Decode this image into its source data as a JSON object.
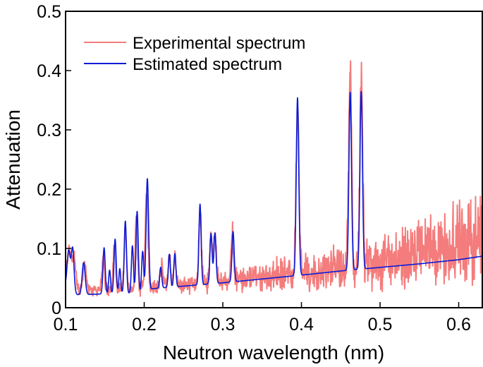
{
  "chart_data": {
    "type": "line",
    "title": "",
    "xlabel": "Neutron wavelength (nm)",
    "ylabel": "Attenuation",
    "xlim": [
      0.1,
      0.63
    ],
    "ylim": [
      0,
      0.5
    ],
    "x_ticks": [
      0.1,
      0.2,
      0.3,
      0.4,
      0.5,
      0.6
    ],
    "x_tick_labels": [
      "0.1",
      "0.2",
      "0.3",
      "0.4",
      "0.5",
      "0.6"
    ],
    "y_ticks": [
      0,
      0.1,
      0.2,
      0.3,
      0.4,
      0.5
    ],
    "y_tick_labels": [
      "0",
      "0.1",
      "0.2",
      "0.3",
      "0.4",
      "0.5"
    ],
    "grid": false,
    "legend_position": "top-left",
    "series": [
      {
        "name": "Experimental spectrum",
        "color": "#f47c7c",
        "style": "noisy",
        "noise_base": 0.012,
        "noise_growth": 0.075,
        "baseline": [
          [
            0.1,
            0.04
          ],
          [
            0.115,
            0.028
          ],
          [
            0.2,
            0.032
          ],
          [
            0.3,
            0.045
          ],
          [
            0.4,
            0.06
          ],
          [
            0.45,
            0.066
          ],
          [
            0.5,
            0.074
          ],
          [
            0.55,
            0.092
          ],
          [
            0.6,
            0.11
          ],
          [
            0.63,
            0.12
          ]
        ],
        "peaks": [
          {
            "x": 0.105,
            "h": 0.06,
            "w": 0.003
          },
          {
            "x": 0.111,
            "h": 0.05,
            "w": 0.002
          },
          {
            "x": 0.124,
            "h": 0.045,
            "w": 0.002
          },
          {
            "x": 0.148,
            "h": 0.06,
            "w": 0.0015
          },
          {
            "x": 0.162,
            "h": 0.075,
            "w": 0.0015
          },
          {
            "x": 0.176,
            "h": 0.1,
            "w": 0.0015
          },
          {
            "x": 0.19,
            "h": 0.12,
            "w": 0.0015
          },
          {
            "x": 0.203,
            "h": 0.16,
            "w": 0.0018
          },
          {
            "x": 0.222,
            "h": 0.04,
            "w": 0.0015
          },
          {
            "x": 0.232,
            "h": 0.05,
            "w": 0.0015
          },
          {
            "x": 0.239,
            "h": 0.05,
            "w": 0.0015
          },
          {
            "x": 0.271,
            "h": 0.12,
            "w": 0.0016
          },
          {
            "x": 0.285,
            "h": 0.08,
            "w": 0.0016
          },
          {
            "x": 0.29,
            "h": 0.08,
            "w": 0.0016
          },
          {
            "x": 0.312,
            "h": 0.08,
            "w": 0.0016
          },
          {
            "x": 0.395,
            "h": 0.28,
            "w": 0.0018
          },
          {
            "x": 0.462,
            "h": 0.33,
            "w": 0.0018
          },
          {
            "x": 0.476,
            "h": 0.32,
            "w": 0.0018
          }
        ]
      },
      {
        "name": "Estimated spectrum",
        "color": "#0a1ad6",
        "style": "smooth",
        "baseline": [
          [
            0.1,
            0.035
          ],
          [
            0.115,
            0.022
          ],
          [
            0.2,
            0.025
          ],
          [
            0.21,
            0.032
          ],
          [
            0.3,
            0.042
          ],
          [
            0.4,
            0.055
          ],
          [
            0.45,
            0.062
          ],
          [
            0.5,
            0.068
          ],
          [
            0.55,
            0.074
          ],
          [
            0.6,
            0.081
          ],
          [
            0.63,
            0.087
          ]
        ],
        "peaks": [
          {
            "x": 0.104,
            "h": 0.065,
            "w": 0.002
          },
          {
            "x": 0.109,
            "h": 0.072,
            "w": 0.0017
          },
          {
            "x": 0.123,
            "h": 0.054,
            "w": 0.0019
          },
          {
            "x": 0.149,
            "h": 0.078,
            "w": 0.0014
          },
          {
            "x": 0.156,
            "h": 0.04,
            "w": 0.0012
          },
          {
            "x": 0.163,
            "h": 0.092,
            "w": 0.0014
          },
          {
            "x": 0.169,
            "h": 0.042,
            "w": 0.0012
          },
          {
            "x": 0.176,
            "h": 0.122,
            "w": 0.0014
          },
          {
            "x": 0.185,
            "h": 0.08,
            "w": 0.0013
          },
          {
            "x": 0.191,
            "h": 0.138,
            "w": 0.0014
          },
          {
            "x": 0.198,
            "h": 0.07,
            "w": 0.0013
          },
          {
            "x": 0.204,
            "h": 0.19,
            "w": 0.0016
          },
          {
            "x": 0.221,
            "h": 0.035,
            "w": 0.0013
          },
          {
            "x": 0.232,
            "h": 0.056,
            "w": 0.0013
          },
          {
            "x": 0.239,
            "h": 0.056,
            "w": 0.0013
          },
          {
            "x": 0.271,
            "h": 0.136,
            "w": 0.0014
          },
          {
            "x": 0.285,
            "h": 0.085,
            "w": 0.0014
          },
          {
            "x": 0.29,
            "h": 0.085,
            "w": 0.0014
          },
          {
            "x": 0.313,
            "h": 0.085,
            "w": 0.0014
          },
          {
            "x": 0.395,
            "h": 0.3,
            "w": 0.0016
          },
          {
            "x": 0.462,
            "h": 0.3,
            "w": 0.0016
          },
          {
            "x": 0.476,
            "h": 0.3,
            "w": 0.0016
          }
        ]
      }
    ]
  }
}
